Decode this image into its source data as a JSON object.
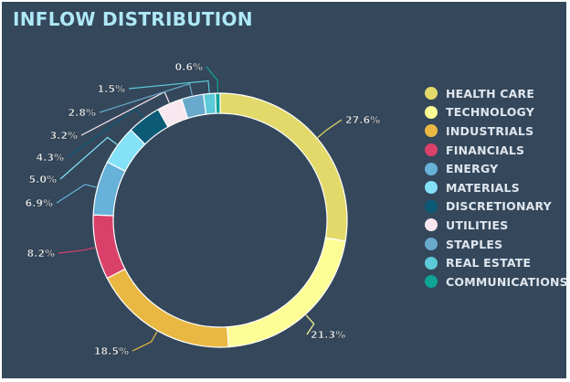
{
  "chart_data": {
    "type": "pie",
    "variant": "donut",
    "title": "INFLOW DISTRIBUTION",
    "legend_position": "right",
    "categories": [
      "HEALTH CARE",
      "TECHNOLOGY",
      "INDUSTRIALS",
      "FINANCIALS",
      "ENERGY",
      "MATERIALS",
      "DISCRETIONARY",
      "UTILITIES",
      "STAPLES",
      "REAL ESTATE",
      "COMMUNICATIONS"
    ],
    "values": [
      27.6,
      21.3,
      18.5,
      8.2,
      6.9,
      5.0,
      4.3,
      3.2,
      2.8,
      1.5,
      0.6
    ],
    "labels": [
      "27.6%",
      "21.3%",
      "18.5%",
      "8.2%",
      "6.9%",
      "5.0%",
      "4.3%",
      "3.2%",
      "2.8%",
      "1.5%",
      "0.6%"
    ],
    "colors": [
      "#e2d96a",
      "#fdfd96",
      "#e8b843",
      "#d9416b",
      "#66b2d9",
      "#84e1f7",
      "#0b5a76",
      "#f8e7ee",
      "#69a9cc",
      "#5ccad9",
      "#0fa396"
    ]
  }
}
